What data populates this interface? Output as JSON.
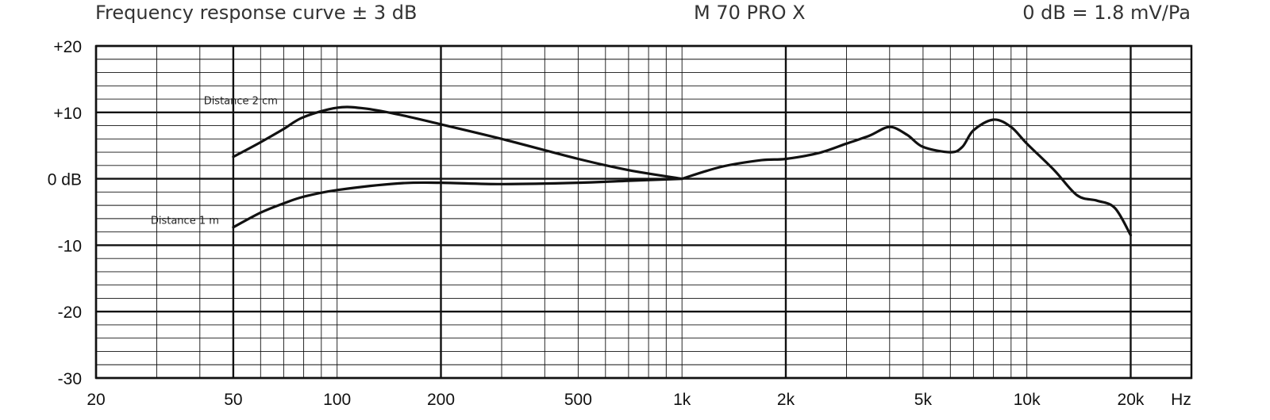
{
  "header": {
    "left": "Frequency response curve ± 3 dB",
    "center": "M 70 PRO X",
    "right": "0 dB = 1.8 mV/Pa"
  },
  "chart_data": {
    "type": "line",
    "title": "M 70 PRO X",
    "xscale": "log",
    "xlim": [
      20,
      30000
    ],
    "ylim": [
      -30,
      20
    ],
    "grid": true,
    "xticks": [
      {
        "value": 20,
        "label": "20"
      },
      {
        "value": 50,
        "label": "50"
      },
      {
        "value": 100,
        "label": "100"
      },
      {
        "value": 200,
        "label": "200"
      },
      {
        "value": 500,
        "label": "500"
      },
      {
        "value": 1000,
        "label": "1k"
      },
      {
        "value": 2000,
        "label": "2k"
      },
      {
        "value": 5000,
        "label": "5k"
      },
      {
        "value": 10000,
        "label": "10k"
      },
      {
        "value": 20000,
        "label": "20k"
      }
    ],
    "xunit_label": "Hz",
    "yticks": [
      {
        "value": 20,
        "label": "+20"
      },
      {
        "value": 10,
        "label": "+10"
      },
      {
        "value": 0,
        "label": "0 dB"
      },
      {
        "value": -10,
        "label": "-10"
      },
      {
        "value": -20,
        "label": "-20"
      },
      {
        "value": -30,
        "label": "-30"
      }
    ],
    "series": [
      {
        "name": "Distance 2 cm",
        "x": [
          50,
          60,
          70,
          80,
          100,
          120,
          150,
          200,
          300,
          500,
          700,
          1000
        ],
        "y": [
          3.3,
          5.5,
          7.5,
          9.3,
          10.7,
          10.6,
          9.7,
          8.2,
          6.0,
          3.0,
          1.3,
          0.0
        ]
      },
      {
        "name": "Distance 1 m",
        "x": [
          50,
          60,
          70,
          80,
          100,
          150,
          200,
          300,
          500,
          700,
          1000
        ],
        "y": [
          -7.3,
          -5.1,
          -3.7,
          -2.7,
          -1.7,
          -0.7,
          -0.6,
          -0.8,
          -0.6,
          -0.3,
          0.0
        ],
        "shared_x": [
          1000,
          1300,
          1700,
          2000,
          2500,
          3000,
          3500,
          4000,
          4500,
          5000,
          6000,
          6500,
          7000,
          8000,
          9000,
          10000,
          12000,
          14000,
          16000,
          18000,
          20000
        ],
        "shared_y": [
          0.0,
          1.8,
          2.8,
          3.0,
          3.9,
          5.3,
          6.5,
          7.8,
          6.6,
          4.8,
          4.0,
          4.8,
          7.3,
          8.9,
          7.8,
          5.3,
          1.3,
          -2.5,
          -3.3,
          -4.4,
          -8.5
        ]
      }
    ],
    "annotations": [
      {
        "text": "Distance 2 cm",
        "x": 50,
        "y": 11.2
      },
      {
        "text": "Distance 1 m",
        "x": 50,
        "y": -6.8
      }
    ]
  }
}
